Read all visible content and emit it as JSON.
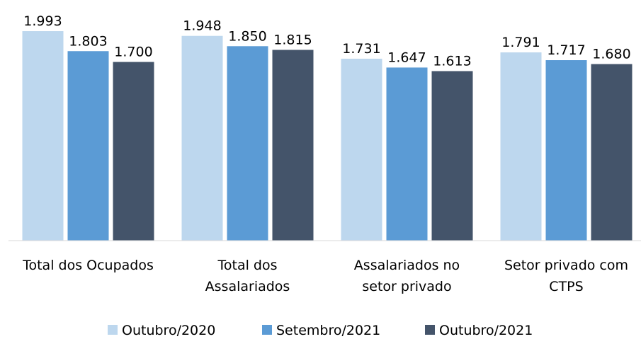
{
  "chart_data": {
    "type": "bar",
    "categories": [
      "Total dos Ocupados",
      "Total dos\nAssalariados",
      "Assalariados no\nsetor privado",
      "Setor privado com\nCTPS"
    ],
    "series": [
      {
        "name": "Outubro/2020",
        "color": "#bdd7ee",
        "values": [
          1993,
          1948,
          1731,
          1791
        ],
        "value_labels": [
          "1.993",
          "1.948",
          "1.731",
          "1.791"
        ]
      },
      {
        "name": "Setembro/2021",
        "color": "#5b9bd5",
        "values": [
          1803,
          1850,
          1647,
          1717
        ],
        "value_labels": [
          "1.803",
          "1.850",
          "1.647",
          "1.717"
        ]
      },
      {
        "name": "Outubro/2021",
        "color": "#44546a",
        "values": [
          1700,
          1815,
          1613,
          1680
        ],
        "value_labels": [
          "1.700",
          "1.815",
          "1.613",
          "1.680"
        ]
      }
    ],
    "ylim": [
      0,
      2000
    ],
    "legend": "bottom"
  }
}
